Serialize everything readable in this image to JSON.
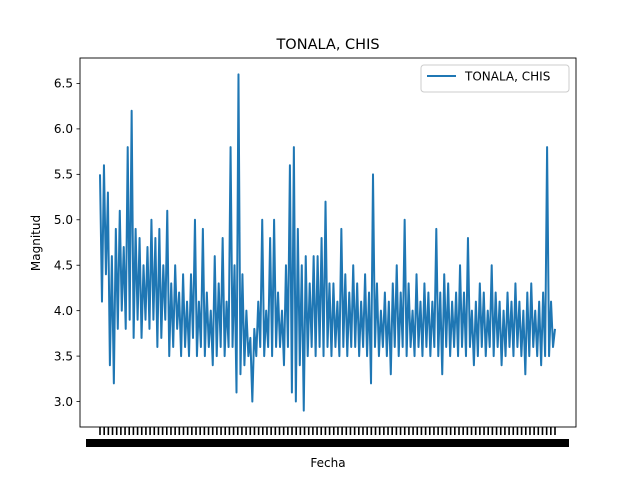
{
  "chart_data": {
    "type": "line",
    "title": "TONALA, CHIS",
    "xlabel": "Fecha",
    "ylabel": "Magnitud",
    "ylim": [
      2.72,
      6.78
    ],
    "yticks": [
      "3.0",
      "3.5",
      "4.0",
      "4.5",
      "5.0",
      "5.5",
      "6.0",
      "6.5"
    ],
    "x_tick_labels_note": "x tick labels are dense and unreadable (overlapping dates)",
    "legend": {
      "position": "top-right",
      "entries": [
        "TONALA, CHIS"
      ]
    },
    "grid": false,
    "series": [
      {
        "name": "TONALA, CHIS",
        "color": "#1f77b4",
        "values": [
          5.5,
          4.1,
          5.6,
          4.4,
          5.3,
          3.4,
          4.6,
          3.2,
          4.9,
          3.8,
          5.1,
          4.0,
          4.7,
          3.8,
          5.8,
          3.9,
          6.2,
          3.7,
          4.9,
          3.9,
          4.8,
          3.7,
          4.5,
          3.9,
          4.7,
          3.8,
          5.0,
          3.9,
          4.8,
          3.6,
          4.9,
          3.7,
          4.5,
          3.9,
          5.1,
          3.5,
          4.3,
          3.6,
          4.5,
          3.8,
          4.2,
          3.5,
          4.4,
          3.6,
          4.1,
          3.5,
          4.4,
          3.7,
          5.0,
          3.5,
          4.1,
          3.6,
          4.9,
          3.5,
          4.2,
          3.6,
          4.0,
          3.4,
          4.6,
          3.5,
          4.3,
          3.6,
          4.8,
          3.5,
          4.1,
          3.6,
          5.8,
          3.6,
          4.5,
          3.1,
          6.6,
          3.3,
          4.4,
          3.4,
          4.0,
          3.5,
          3.7,
          3.0,
          3.8,
          3.5,
          4.1,
          3.6,
          5.0,
          3.5,
          4.0,
          3.6,
          4.8,
          3.5,
          5.0,
          3.6,
          4.2,
          3.6,
          4.0,
          3.4,
          4.5,
          3.6,
          5.6,
          3.1,
          5.8,
          3.0,
          4.9,
          3.4,
          4.5,
          2.9,
          4.6,
          3.5,
          4.3,
          3.6,
          4.6,
          3.5,
          4.6,
          3.6,
          4.8,
          3.5,
          5.2,
          3.6,
          4.3,
          3.5,
          4.3,
          3.6,
          4.1,
          3.5,
          4.9,
          3.6,
          4.4,
          3.5,
          4.2,
          3.6,
          4.5,
          3.6,
          4.3,
          3.5,
          4.1,
          3.6,
          4.4,
          3.5,
          4.2,
          3.2,
          5.5,
          3.6,
          4.3,
          3.5,
          4.0,
          3.6,
          4.2,
          3.5,
          4.1,
          3.3,
          4.3,
          3.6,
          4.5,
          3.5,
          4.2,
          3.6,
          5.0,
          3.5,
          4.3,
          3.6,
          4.0,
          3.5,
          4.4,
          3.6,
          4.1,
          3.5,
          4.3,
          3.6,
          4.2,
          3.5,
          4.1,
          3.6,
          4.9,
          3.5,
          4.2,
          3.3,
          4.4,
          3.6,
          4.3,
          3.5,
          4.1,
          3.6,
          4.2,
          3.5,
          4.5,
          3.6,
          4.2,
          3.5,
          4.8,
          3.6,
          4.0,
          3.4,
          4.1,
          3.5,
          4.3,
          3.6,
          4.2,
          3.5,
          4.0,
          3.6,
          4.5,
          3.5,
          4.2,
          3.6,
          4.1,
          3.4,
          4.0,
          3.5,
          4.2,
          3.6,
          4.1,
          3.5,
          4.3,
          3.6,
          4.1,
          3.5,
          4.0,
          3.3,
          4.2,
          3.5,
          4.3,
          3.6,
          4.0,
          3.5,
          4.1,
          3.4,
          4.2,
          3.5,
          5.8,
          3.5,
          4.1,
          3.6,
          3.8
        ]
      }
    ]
  }
}
